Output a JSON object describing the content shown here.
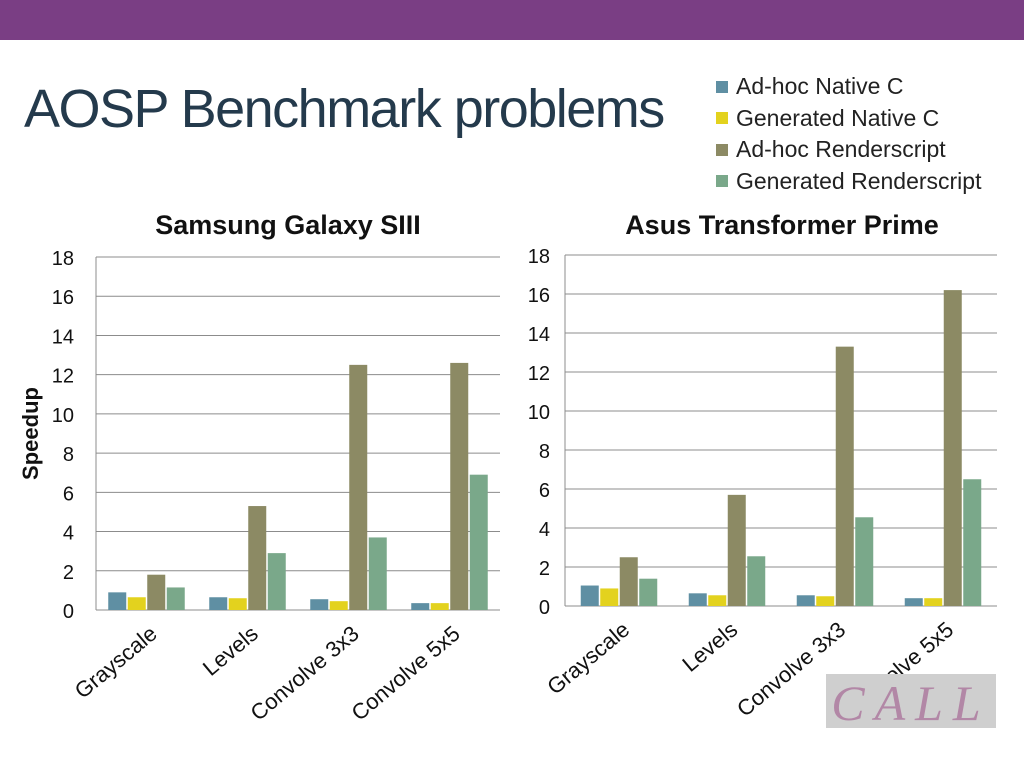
{
  "slide": {
    "title": "AOSP Benchmark problems",
    "accent_color": "#7a3e84",
    "title_color": "#243a4c"
  },
  "legend": [
    {
      "name": "Ad-hoc Native C",
      "color": "#5f8fa3"
    },
    {
      "name": "Generated Native C",
      "color": "#e3d21e"
    },
    {
      "name": "Ad-hoc Renderscript",
      "color": "#8c8a64"
    },
    {
      "name": "Generated Renderscript",
      "color": "#7aa88a"
    }
  ],
  "logo": {
    "text": "CALL",
    "icon": "lab-logo-watermark"
  },
  "chart_data": [
    {
      "type": "bar",
      "title": "Samsung Galaxy SIII",
      "ylabel": "Speedup",
      "xlabel": "",
      "categories": [
        "Grayscale",
        "Levels",
        "Convolve 3x3",
        "Convolve 5x5"
      ],
      "ylim": [
        0,
        18
      ],
      "yticks": [
        0,
        2,
        4,
        6,
        8,
        10,
        12,
        14,
        16,
        18
      ],
      "grid": true,
      "series": [
        {
          "name": "Ad-hoc Native C",
          "values": [
            0.9,
            0.65,
            0.55,
            0.35
          ]
        },
        {
          "name": "Generated Native C",
          "values": [
            0.65,
            0.6,
            0.45,
            0.35
          ]
        },
        {
          "name": "Ad-hoc Renderscript",
          "values": [
            1.8,
            5.3,
            12.5,
            12.6
          ]
        },
        {
          "name": "Generated Renderscript",
          "values": [
            1.15,
            2.9,
            3.7,
            6.9
          ]
        }
      ]
    },
    {
      "type": "bar",
      "title": "Asus Transformer Prime",
      "ylabel": "",
      "xlabel": "",
      "categories": [
        "Grayscale",
        "Levels",
        "Convolve 3x3",
        "Convolve 5x5"
      ],
      "ylim": [
        0,
        18
      ],
      "yticks": [
        0,
        2,
        4,
        6,
        8,
        10,
        12,
        14,
        16,
        18
      ],
      "grid": true,
      "series": [
        {
          "name": "Ad-hoc Native C",
          "values": [
            1.05,
            0.65,
            0.55,
            0.4
          ]
        },
        {
          "name": "Generated Native C",
          "values": [
            0.9,
            0.55,
            0.5,
            0.4
          ]
        },
        {
          "name": "Ad-hoc Renderscript",
          "values": [
            2.5,
            5.7,
            13.3,
            16.2
          ]
        },
        {
          "name": "Generated Renderscript",
          "values": [
            1.4,
            2.55,
            4.55,
            6.5
          ]
        }
      ]
    }
  ]
}
